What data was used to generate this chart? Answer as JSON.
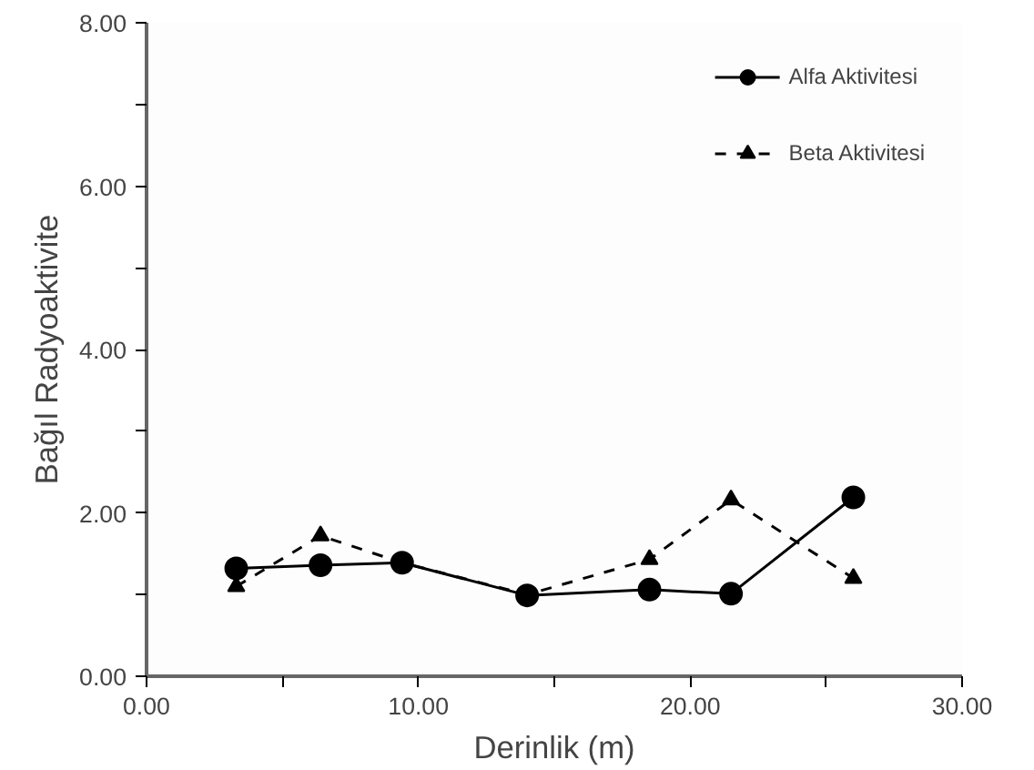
{
  "chart_data": {
    "type": "line",
    "xlabel": "Derinlik (m)",
    "ylabel": "Bağıl Radyoaktivite",
    "x": [
      3.3,
      6.4,
      9.4,
      14.0,
      18.5,
      21.5,
      26.0
    ],
    "series": [
      {
        "name": "Alfa Aktivitesi",
        "color": "#000000",
        "marker": "circle",
        "line_style": "solid",
        "values": [
          1.32,
          1.36,
          1.39,
          0.99,
          1.06,
          1.01,
          2.19
        ]
      },
      {
        "name": "Beta Aktivitesi",
        "color": "#000000",
        "marker": "triangle",
        "line_style": "dashed",
        "values": [
          1.1,
          1.72,
          1.39,
          1.0,
          1.43,
          2.16,
          1.2
        ]
      }
    ],
    "xlim": [
      0,
      30
    ],
    "ylim": [
      0,
      8
    ],
    "xticks": [
      {
        "value": 0,
        "label": "0.00"
      },
      {
        "value": 5,
        "label": null
      },
      {
        "value": 10,
        "label": "10.00"
      },
      {
        "value": 15,
        "label": null
      },
      {
        "value": 20,
        "label": "20.00"
      },
      {
        "value": 25,
        "label": null
      },
      {
        "value": 30,
        "label": "30.00"
      }
    ],
    "yticks": [
      {
        "value": 0,
        "label": "0.00"
      },
      {
        "value": 1,
        "label": null
      },
      {
        "value": 2,
        "label": "2.00"
      },
      {
        "value": 3,
        "label": null
      },
      {
        "value": 4,
        "label": "4.00"
      },
      {
        "value": 5,
        "label": null
      },
      {
        "value": 6,
        "label": "6.00"
      },
      {
        "value": 7,
        "label": null
      },
      {
        "value": 8,
        "label": "8.00"
      }
    ],
    "grid": false,
    "legend": "top right"
  }
}
